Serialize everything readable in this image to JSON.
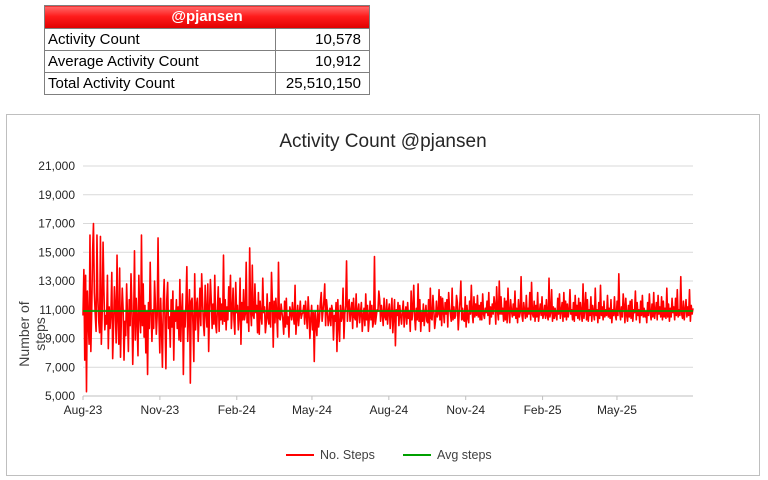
{
  "summary": {
    "header": "@pjansen",
    "rows": [
      {
        "label": "Activity Count",
        "value": "10,578"
      },
      {
        "label": "Average Activity Count",
        "value": "10,912"
      },
      {
        "label": "Total Activity Count",
        "value": "25,510,150"
      }
    ],
    "header_color": "#ff2a2a"
  },
  "chart_data": {
    "type": "line",
    "title": "Activity Count @pjansen",
    "xlabel": "",
    "ylabel": "Number of steps",
    "ylim": [
      5000,
      21000
    ],
    "yticks": [
      5000,
      7000,
      9000,
      11000,
      13000,
      15000,
      17000,
      19000,
      21000
    ],
    "ytick_labels": [
      "5,000",
      "7,000",
      "9,000",
      "11,000",
      "13,000",
      "15,000",
      "17,000",
      "19,000",
      "21,000"
    ],
    "xtick_labels": [
      "Aug-23",
      "Nov-23",
      "Feb-24",
      "May-24",
      "Aug-24",
      "Nov-24",
      "Feb-25",
      "May-25"
    ],
    "xlim": [
      "2023-08-01",
      "2025-07-31"
    ],
    "grid": "horizontal",
    "legend_position": "bottom",
    "series": [
      {
        "name": "No. Steps",
        "color": "#ff0000",
        "x_start": "2023-08-01",
        "x_end": "2025-07-31",
        "interval": "daily",
        "approximate": true,
        "values": [
          10600,
          13800,
          7500,
          13400,
          5300,
          12300,
          10200,
          8600,
          16200,
          8100,
          11000,
          15000,
          17000,
          12200,
          10700,
          9500,
          16200,
          11900,
          10200,
          9400,
          16100,
          8600,
          10800,
          15700,
          12300,
          9600,
          10600,
          10000,
          13400,
          8300,
          11200,
          9700,
          10800,
          13600,
          7600,
          9800,
          12600,
          11100,
          8700,
          14800,
          10300,
          8600,
          13900,
          7700,
          10500,
          12500,
          11000,
          7500,
          10200,
          9200,
          12800,
          10500,
          8100,
          11700,
          9900,
          13500,
          11300,
          7200,
          10100,
          15100,
          8900,
          11800,
          10200,
          7800,
          13400,
          10600,
          9400,
          16200,
          9900,
          12800,
          9100,
          11300,
          8000,
          10900,
          6500,
          11500,
          9700,
          14300,
          10800,
          8800,
          11000,
          9700,
          13000,
          11300,
          9300,
          10600,
          16000,
          10500,
          8000,
          11800,
          9600,
          7000,
          11400,
          13100,
          10200,
          6900,
          11700,
          12900,
          9700,
          10500,
          8400,
          11700,
          9800,
          12300,
          7500,
          10900,
          10200,
          11700,
          9700,
          11200,
          8900,
          13100,
          8800,
          10800,
          12100,
          6500,
          10900,
          9800,
          11500,
          14000,
          8800,
          10700,
          12400,
          5900,
          11600,
          11800,
          10000,
          7400,
          13500,
          9600,
          11300,
          11800,
          8800,
          10700,
          12500,
          9900,
          13500,
          11600,
          10000,
          9200,
          12700,
          10800,
          9800,
          12800,
          8100,
          11000,
          13100,
          11600,
          9700,
          11400,
          10000,
          13400,
          10000,
          9400,
          11100,
          12600,
          9500,
          11800,
          10300,
          11400,
          10000,
          14800,
          10200,
          11700,
          9600,
          11200,
          10300,
          12600,
          10900,
          13400,
          9700,
          10900,
          12500,
          10300,
          9300,
          12900,
          10800,
          11300,
          9600,
          10500,
          13200,
          8600,
          11500,
          10300,
          12400,
          10300,
          10700,
          14300,
          10100,
          11200,
          9500,
          15300,
          11000,
          9900,
          14100,
          10600,
          10400,
          12800,
          10800,
          11300,
          9400,
          12200,
          9300,
          11600,
          10600,
          10000,
          13200,
          10800,
          11200,
          9400,
          10100,
          12100,
          10400,
          10000,
          11500,
          9800,
          13600,
          11600,
          8400,
          11600,
          10100,
          11800,
          10600,
          9100,
          14300,
          10400,
          10300,
          11400,
          10800,
          10300,
          9300,
          11600,
          9800,
          11800,
          10000,
          10500,
          9100,
          11200,
          10900,
          10300,
          11500,
          10600,
          10000,
          12700,
          9300,
          10400,
          11300,
          9900,
          10700,
          11600,
          10400,
          10700,
          10800,
          11300,
          10000,
          11600,
          10600,
          9700,
          11900,
          10800,
          9000,
          10400,
          11300,
          9600,
          10800,
          7400,
          10900,
          10000,
          9200,
          11300,
          9800,
          10400,
          11500,
          12200,
          10200,
          10900,
          11600,
          12800,
          9900,
          11700,
          11000,
          9900,
          10300,
          11100,
          9900,
          11300,
          10900,
          8900,
          10600,
          10200,
          11500,
          8100,
          11700,
          9900,
          8800,
          11300,
          10200,
          10500,
          12500,
          9000,
          10700,
          11300,
          14400,
          10200,
          11400,
          11700,
          10200,
          10900,
          11500,
          9700,
          11800,
          10500,
          10300,
          12100,
          9800,
          10900,
          11400,
          10100,
          10800,
          11500,
          9500,
          10600,
          11100,
          9900,
          12100,
          10300,
          11300,
          9500,
          10400,
          11600,
          10300,
          11300,
          9800,
          10200,
          14700,
          10000,
          10500,
          11000,
          10900,
          12300,
          11700,
          10200,
          11300,
          10700,
          9900,
          11800,
          10500,
          10300,
          11700,
          10000,
          10900,
          11400,
          9700,
          10800,
          11800,
          9400,
          10600,
          11700,
          8500,
          11000,
          10600,
          11500,
          9900,
          11300,
          10600,
          10000,
          10900,
          11600,
          9800,
          10700,
          11200,
          10000,
          11500,
          10400,
          10900,
          9500,
          12300,
          10300,
          11000,
          12700,
          10500,
          9600,
          11100,
          10300,
          12800,
          10200,
          11700,
          9500,
          10800,
          10200,
          11400,
          9900,
          10700,
          11300,
          10200,
          10100,
          11700,
          9500,
          12500,
          10400,
          10300,
          12000,
          11000,
          9700,
          10300,
          11600,
          10500,
          10700,
          12400,
          10300,
          11900,
          9900,
          11800,
          10900,
          10100,
          11500,
          10700,
          11700,
          9800,
          12200,
          11100,
          10700,
          10200,
          12500,
          10300,
          11200,
          10400,
          10600,
          12000,
          11500,
          9600,
          10700,
          11600,
          13000,
          10300,
          11100,
          10300,
          10200,
          11900,
          9800,
          11300,
          10400,
          10100,
          11600,
          10700,
          12700,
          10800,
          10100,
          11900,
          10500,
          11400,
          10600,
          12000,
          10500,
          11300,
          10300,
          11500,
          10300,
          12100,
          10700,
          10400,
          11100,
          10800,
          11600,
          10600,
          12200,
          10000,
          11200,
          10500,
          11400,
          10700,
          11900,
          11300,
          10000,
          12600,
          10900,
          10300,
          13000,
          10700,
          11900,
          10700,
          11100,
          10200,
          11800,
          10300,
          11600,
          10100,
          12500,
          10800,
          10100,
          11700,
          10900,
          10500,
          11400,
          10600,
          12300,
          10400,
          11100,
          10100,
          11700,
          10500,
          10800,
          13300,
          10600,
          10200,
          11500,
          10900,
          10400,
          12000,
          10500,
          11100,
          10700,
          12200,
          10300,
          12900,
          10700,
          10500,
          11600,
          10200,
          11300,
          10500,
          12200,
          10200,
          10800,
          11400,
          10600,
          11900,
          10400,
          10700,
          11300,
          10400,
          11700,
          10600,
          10300,
          13200,
          10500,
          10800,
          12400,
          10200,
          11200,
          10400,
          11100,
          10600,
          10300,
          11800,
          10700,
          12100,
          10400,
          10900,
          11500,
          10200,
          12200,
          10500,
          11600,
          10300,
          11400,
          10500,
          10900,
          12400,
          10700,
          11000,
          10300,
          11500,
          10200,
          12000,
          10600,
          11300,
          10400,
          11800,
          10300,
          11500,
          10800,
          10200,
          12800,
          10400,
          10900,
          12200,
          10300,
          11700,
          10200,
          11000,
          10600,
          11900,
          10200,
          11300,
          10800,
          10300,
          12500,
          10600,
          11000,
          10100,
          11500,
          10400,
          12700,
          10600,
          11200,
          10300,
          11600,
          10500,
          11000,
          10600,
          12000,
          10500,
          11100,
          10400,
          11700,
          10100,
          11000,
          10600,
          11900,
          10600,
          10300,
          11600,
          10600,
          13500,
          10900,
          10300,
          11200,
          10500,
          12100,
          11300,
          10100,
          11800,
          10600,
          10200,
          11300,
          10500,
          11600,
          10400,
          11700,
          10200,
          11000,
          10800,
          12300,
          10300,
          11500,
          10600,
          11000,
          10100,
          11600,
          10600,
          12000,
          10500,
          11100,
          10500,
          10900,
          10100,
          11500,
          10600,
          12100,
          10800,
          10300,
          11400,
          10500,
          12200,
          10400,
          10900,
          11500,
          10300,
          12000,
          10700,
          11200,
          10500,
          11900,
          10300,
          11600,
          10500,
          11100,
          10400,
          12500,
          10500,
          11400,
          10200,
          11100,
          10500,
          11800,
          10800,
          11200,
          10300,
          11800,
          10600,
          12400,
          10500,
          11000,
          10600,
          13300,
          10700,
          10400,
          11600,
          10300,
          11000,
          11700,
          10500,
          11200,
          10600,
          12400,
          10200,
          11300,
          10700,
          11100
        ]
      },
      {
        "name": "Avg steps",
        "color": "#00a000",
        "value": 10912
      }
    ]
  }
}
